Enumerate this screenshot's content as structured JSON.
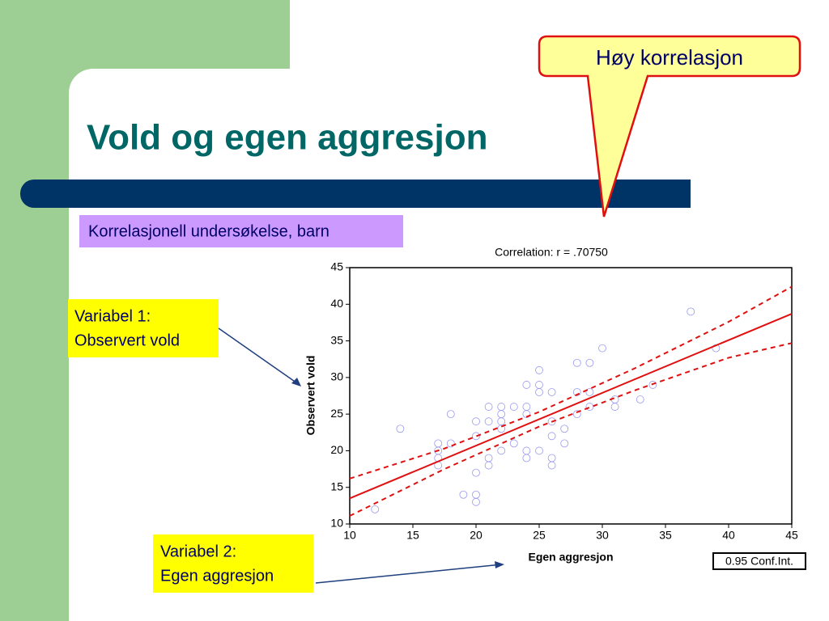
{
  "slide": {
    "title": "Vold og egen aggresjon",
    "subtitle": "Korrelasjonell undersøkelse, barn",
    "callout": "Høy korrelasjon",
    "variable1": [
      "Variabel 1:",
      "Observert vold"
    ],
    "variable2": [
      "Variabel 2:",
      "Egen aggresjon"
    ]
  },
  "chart_data": {
    "type": "scatter",
    "title": "Correlation: r = .70750",
    "x_label": "Egen aggresjon",
    "y_label": "Observert vold",
    "legend": "0.95 Conf.Int.",
    "legend_position": "lower right",
    "xlim": [
      10,
      45
    ],
    "ylim": [
      10,
      45
    ],
    "xticks": [
      10,
      15,
      20,
      25,
      30,
      35,
      40,
      45
    ],
    "yticks": [
      10,
      15,
      20,
      25,
      30,
      35,
      40,
      45
    ],
    "series": [
      {
        "kind": "points",
        "color": "#9999ee",
        "x": [
          12,
          14,
          17,
          17,
          17,
          17,
          18,
          18,
          19,
          20,
          20,
          20,
          20,
          20,
          21,
          21,
          21,
          21,
          22,
          22,
          22,
          22,
          22,
          23,
          23,
          24,
          24,
          24,
          24,
          24,
          25,
          25,
          25,
          25,
          26,
          26,
          26,
          26,
          26,
          27,
          27,
          28,
          28,
          28,
          29,
          29,
          29,
          30,
          31,
          31,
          33,
          34,
          37,
          39
        ],
        "values": [
          12,
          23,
          21,
          20,
          19,
          18,
          25,
          21,
          14,
          14,
          13,
          24,
          22,
          17,
          26,
          24,
          19,
          18,
          26,
          25,
          24,
          23,
          20,
          26,
          21,
          29,
          26,
          25,
          20,
          19,
          31,
          29,
          28,
          20,
          28,
          24,
          22,
          19,
          18,
          23,
          21,
          32,
          28,
          25,
          32,
          28,
          26,
          34,
          26,
          27,
          27,
          29,
          39,
          34
        ]
      },
      {
        "kind": "line",
        "style": "solid",
        "color": "#e01010",
        "x": [
          10,
          45
        ],
        "values": [
          13.5,
          38.7
        ]
      },
      {
        "kind": "line",
        "style": "dashed",
        "color": "#e01010",
        "x": [
          10,
          17.5,
          25,
          32.5,
          40,
          45
        ],
        "values": [
          16.2,
          20.3,
          25.3,
          31.2,
          37.6,
          42.4
        ]
      },
      {
        "kind": "line",
        "style": "dashed",
        "color": "#e01010",
        "x": [
          10,
          17.5,
          25,
          32.5,
          40,
          45
        ],
        "values": [
          11.1,
          17.5,
          23.3,
          28.2,
          32.7,
          34.7
        ]
      }
    ]
  }
}
